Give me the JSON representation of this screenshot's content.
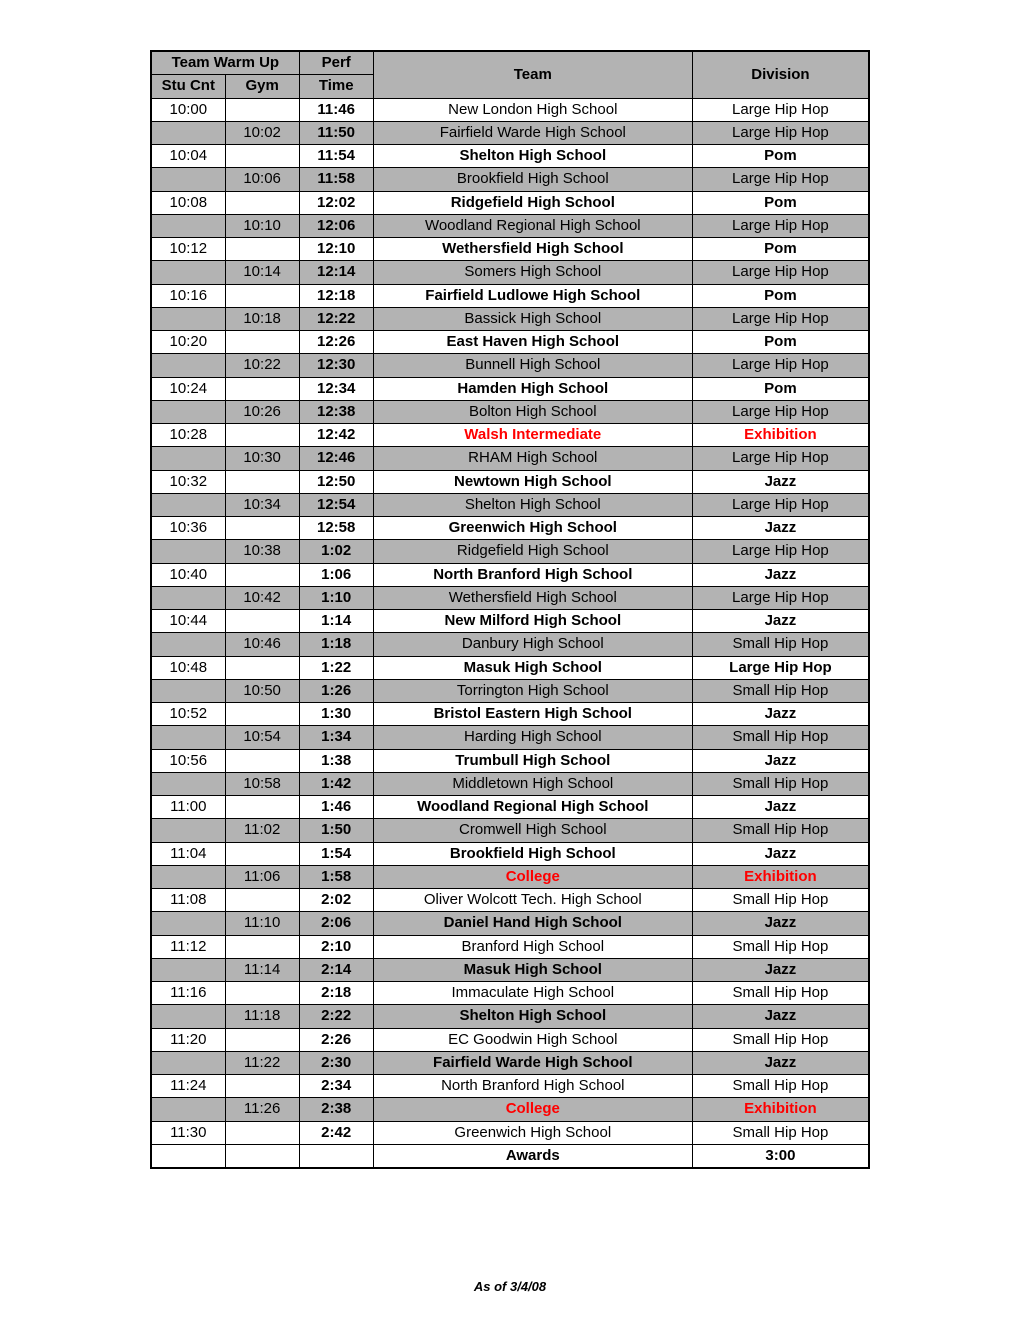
{
  "headers": {
    "team_warm_up": "Team Warm Up",
    "stu_cnt": "Stu Cnt",
    "gym": "Gym",
    "perf": "Perf",
    "time": "Time",
    "team": "Team",
    "division": "Division"
  },
  "footer": "As of 3/4/08",
  "colors": {
    "shaded_bg": "#b3b3b3",
    "border": "#000000",
    "red": "#ff0000",
    "background": "#ffffff"
  },
  "rows": [
    {
      "stu": "10:00",
      "gym": "",
      "perf": "11:46",
      "team": "New London High School",
      "div": "Large Hip Hop",
      "shaded": false,
      "bold": false,
      "red": false
    },
    {
      "stu": "",
      "gym": "10:02",
      "perf": "11:50",
      "team": "Fairfield Warde High School",
      "div": "Large Hip Hop",
      "shaded": true,
      "bold": false,
      "red": false
    },
    {
      "stu": "10:04",
      "gym": "",
      "perf": "11:54",
      "team": "Shelton High School",
      "div": "Pom",
      "shaded": false,
      "bold": true,
      "red": false
    },
    {
      "stu": "",
      "gym": "10:06",
      "perf": "11:58",
      "team": "Brookfield High School",
      "div": "Large Hip Hop",
      "shaded": true,
      "bold": false,
      "red": false
    },
    {
      "stu": "10:08",
      "gym": "",
      "perf": "12:02",
      "team": "Ridgefield High School",
      "div": "Pom",
      "shaded": false,
      "bold": true,
      "red": false
    },
    {
      "stu": "",
      "gym": "10:10",
      "perf": "12:06",
      "team": "Woodland Regional High School",
      "div": "Large Hip Hop",
      "shaded": true,
      "bold": false,
      "red": false
    },
    {
      "stu": "10:12",
      "gym": "",
      "perf": "12:10",
      "team": "Wethersfield High School",
      "div": "Pom",
      "shaded": false,
      "bold": true,
      "red": false
    },
    {
      "stu": "",
      "gym": "10:14",
      "perf": "12:14",
      "team": "Somers High School",
      "div": "Large Hip Hop",
      "shaded": true,
      "bold": false,
      "red": false
    },
    {
      "stu": "10:16",
      "gym": "",
      "perf": "12:18",
      "team": "Fairfield Ludlowe High School",
      "div": "Pom",
      "shaded": false,
      "bold": true,
      "red": false
    },
    {
      "stu": "",
      "gym": "10:18",
      "perf": "12:22",
      "team": "Bassick High School",
      "div": "Large Hip Hop",
      "shaded": true,
      "bold": false,
      "red": false
    },
    {
      "stu": "10:20",
      "gym": "",
      "perf": "12:26",
      "team": "East Haven High School",
      "div": "Pom",
      "shaded": false,
      "bold": true,
      "red": false
    },
    {
      "stu": "",
      "gym": "10:22",
      "perf": "12:30",
      "team": "Bunnell High School",
      "div": "Large Hip Hop",
      "shaded": true,
      "bold": false,
      "red": false
    },
    {
      "stu": "10:24",
      "gym": "",
      "perf": "12:34",
      "team": "Hamden High School",
      "div": "Pom",
      "shaded": false,
      "bold": true,
      "red": false
    },
    {
      "stu": "",
      "gym": "10:26",
      "perf": "12:38",
      "team": "Bolton High School",
      "div": "Large Hip Hop",
      "shaded": true,
      "bold": false,
      "red": false
    },
    {
      "stu": "10:28",
      "gym": "",
      "perf": "12:42",
      "team": "Walsh Intermediate",
      "div": "Exhibition",
      "shaded": false,
      "bold": true,
      "red": true
    },
    {
      "stu": "",
      "gym": "10:30",
      "perf": "12:46",
      "team": "RHAM High School",
      "div": "Large Hip Hop",
      "shaded": true,
      "bold": false,
      "red": false
    },
    {
      "stu": "10:32",
      "gym": "",
      "perf": "12:50",
      "team": "Newtown High School",
      "div": "Jazz",
      "shaded": false,
      "bold": true,
      "red": false
    },
    {
      "stu": "",
      "gym": "10:34",
      "perf": "12:54",
      "team": "Shelton High School",
      "div": "Large Hip Hop",
      "shaded": true,
      "bold": false,
      "red": false
    },
    {
      "stu": "10:36",
      "gym": "",
      "perf": "12:58",
      "team": "Greenwich High School",
      "div": "Jazz",
      "shaded": false,
      "bold": true,
      "red": false
    },
    {
      "stu": "",
      "gym": "10:38",
      "perf": "1:02",
      "team": "Ridgefield High School",
      "div": "Large Hip Hop",
      "shaded": true,
      "bold": false,
      "red": false
    },
    {
      "stu": "10:40",
      "gym": "",
      "perf": "1:06",
      "team": "North Branford High School",
      "div": "Jazz",
      "shaded": false,
      "bold": true,
      "red": false
    },
    {
      "stu": "",
      "gym": "10:42",
      "perf": "1:10",
      "team": "Wethersfield High School",
      "div": "Large Hip Hop",
      "shaded": true,
      "bold": false,
      "red": false
    },
    {
      "stu": "10:44",
      "gym": "",
      "perf": "1:14",
      "team": "New Milford High School",
      "div": "Jazz",
      "shaded": false,
      "bold": true,
      "red": false
    },
    {
      "stu": "",
      "gym": "10:46",
      "perf": "1:18",
      "team": "Danbury High School",
      "div": "Small Hip Hop",
      "shaded": true,
      "bold": false,
      "red": false
    },
    {
      "stu": "10:48",
      "gym": "",
      "perf": "1:22",
      "team": "Masuk High School",
      "div": "Large Hip Hop",
      "shaded": false,
      "bold": true,
      "red": false
    },
    {
      "stu": "",
      "gym": "10:50",
      "perf": "1:26",
      "team": "Torrington High School",
      "div": "Small Hip Hop",
      "shaded": true,
      "bold": false,
      "red": false
    },
    {
      "stu": "10:52",
      "gym": "",
      "perf": "1:30",
      "team": "Bristol Eastern High School",
      "div": "Jazz",
      "shaded": false,
      "bold": true,
      "red": false
    },
    {
      "stu": "",
      "gym": "10:54",
      "perf": "1:34",
      "team": "Harding High School",
      "div": "Small Hip Hop",
      "shaded": true,
      "bold": false,
      "red": false
    },
    {
      "stu": "10:56",
      "gym": "",
      "perf": "1:38",
      "team": "Trumbull High School",
      "div": "Jazz",
      "shaded": false,
      "bold": true,
      "red": false
    },
    {
      "stu": "",
      "gym": "10:58",
      "perf": "1:42",
      "team": "Middletown High School",
      "div": "Small Hip Hop",
      "shaded": true,
      "bold": false,
      "red": false
    },
    {
      "stu": "11:00",
      "gym": "",
      "perf": "1:46",
      "team": "Woodland Regional High School",
      "div": "Jazz",
      "shaded": false,
      "bold": true,
      "red": false
    },
    {
      "stu": "",
      "gym": "11:02",
      "perf": "1:50",
      "team": "Cromwell High School",
      "div": "Small Hip Hop",
      "shaded": true,
      "bold": false,
      "red": false
    },
    {
      "stu": "11:04",
      "gym": "",
      "perf": "1:54",
      "team": "Brookfield High School",
      "div": "Jazz",
      "shaded": false,
      "bold": true,
      "red": false
    },
    {
      "stu": "",
      "gym": "11:06",
      "perf": "1:58",
      "team": "College",
      "div": "Exhibition",
      "shaded": true,
      "bold": true,
      "red": true
    },
    {
      "stu": "11:08",
      "gym": "",
      "perf": "2:02",
      "team": "Oliver Wolcott Tech. High School",
      "div": "Small Hip Hop",
      "shaded": false,
      "bold": false,
      "red": false
    },
    {
      "stu": "",
      "gym": "11:10",
      "perf": "2:06",
      "team": "Daniel Hand High School",
      "div": "Jazz",
      "shaded": true,
      "bold": true,
      "red": false
    },
    {
      "stu": "11:12",
      "gym": "",
      "perf": "2:10",
      "team": "Branford High School",
      "div": "Small Hip Hop",
      "shaded": false,
      "bold": false,
      "red": false
    },
    {
      "stu": "",
      "gym": "11:14",
      "perf": "2:14",
      "team": "Masuk High School",
      "div": "Jazz",
      "shaded": true,
      "bold": true,
      "red": false
    },
    {
      "stu": "11:16",
      "gym": "",
      "perf": "2:18",
      "team": "Immaculate High School",
      "div": "Small Hip Hop",
      "shaded": false,
      "bold": false,
      "red": false
    },
    {
      "stu": "",
      "gym": "11:18",
      "perf": "2:22",
      "team": "Shelton High School",
      "div": "Jazz",
      "shaded": true,
      "bold": true,
      "red": false
    },
    {
      "stu": "11:20",
      "gym": "",
      "perf": "2:26",
      "team": "EC Goodwin High School",
      "div": "Small Hip Hop",
      "shaded": false,
      "bold": false,
      "red": false
    },
    {
      "stu": "",
      "gym": "11:22",
      "perf": "2:30",
      "team": "Fairfield Warde High School",
      "div": "Jazz",
      "shaded": true,
      "bold": true,
      "red": false
    },
    {
      "stu": "11:24",
      "gym": "",
      "perf": "2:34",
      "team": "North Branford High School",
      "div": "Small Hip Hop",
      "shaded": false,
      "bold": false,
      "red": false
    },
    {
      "stu": "",
      "gym": "11:26",
      "perf": "2:38",
      "team": "College",
      "div": "Exhibition",
      "shaded": true,
      "bold": true,
      "red": true
    },
    {
      "stu": "11:30",
      "gym": "",
      "perf": "2:42",
      "team": "Greenwich High School",
      "div": "Small Hip Hop",
      "shaded": false,
      "bold": false,
      "red": false
    },
    {
      "stu": "",
      "gym": "",
      "perf": "",
      "team": "Awards",
      "div": "3:00",
      "shaded": false,
      "bold": true,
      "red": false
    }
  ]
}
